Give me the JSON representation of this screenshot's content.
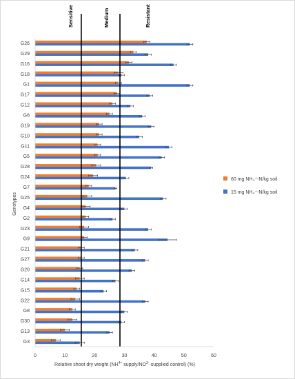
{
  "chart_data": {
    "type": "bar",
    "orientation": "horizontal",
    "categories": [
      "G26",
      "G29",
      "G16",
      "G18",
      "G1",
      "G17",
      "G12",
      "G6",
      "G19",
      "G10",
      "G11",
      "G5",
      "G28",
      "G24",
      "G7",
      "G25",
      "G4",
      "G2",
      "G23",
      "G9",
      "G21",
      "G27",
      "G20",
      "G14",
      "G15",
      "G22",
      "G8",
      "G30",
      "G13",
      "G3"
    ],
    "series": [
      {
        "name": "60 mg NH₄⁺-N/kg soil",
        "color": "#ED7D31",
        "values": [
          37.5,
          33.0,
          31.5,
          28.0,
          28.0,
          27.5,
          26.0,
          25.0,
          21.5,
          21.5,
          21.0,
          21.0,
          20.5,
          19.5,
          18.0,
          17.5,
          17.0,
          17.0,
          16.5,
          16.5,
          15.5,
          15.5,
          15.0,
          15.0,
          14.0,
          13.5,
          12.5,
          12.5,
          10.0,
          7.0
        ],
        "errors": [
          1.0,
          1.0,
          1.0,
          1.5,
          1.0,
          1.0,
          1.0,
          1.0,
          1.0,
          1.0,
          1.0,
          1.0,
          1.5,
          1.5,
          1.0,
          1.5,
          1.5,
          1.0,
          1.5,
          1.0,
          1.0,
          1.0,
          1.0,
          1.5,
          1.0,
          1.5,
          1.0,
          1.5,
          1.5,
          1.5
        ]
      },
      {
        "name": "15 mg NH₄⁺-N/kg soil",
        "color": "#4472C4",
        "values": [
          52.0,
          38.0,
          46.5,
          29.0,
          52.0,
          38.5,
          32.0,
          36.0,
          39.0,
          35.0,
          45.0,
          42.5,
          39.0,
          30.5,
          27.0,
          43.0,
          30.0,
          26.0,
          38.0,
          44.5,
          33.5,
          37.0,
          32.5,
          27.0,
          23.0,
          37.0,
          30.0,
          29.0,
          25.0,
          15.0
        ],
        "errors": [
          1.0,
          1.0,
          1.0,
          1.0,
          1.0,
          1.0,
          1.0,
          1.0,
          1.0,
          1.0,
          1.0,
          1.0,
          0.5,
          1.0,
          0.5,
          1.0,
          1.0,
          1.0,
          1.0,
          3.0,
          1.0,
          1.0,
          1.0,
          1.0,
          1.0,
          1.0,
          1.0,
          1.0,
          1.0,
          1.5
        ]
      }
    ],
    "xlabel": "Relative shoot dry weight (NH4+ supply/NO3- supplied control) (%)",
    "ylabel": "Genotypes",
    "xlim": [
      0,
      60
    ],
    "xticks": [
      "0",
      "10",
      "20",
      "30",
      "40",
      "50",
      "60"
    ],
    "thresholds": [
      {
        "label": "Sensitive",
        "value": 15.5
      },
      {
        "label": "Medium",
        "value": 28.5
      }
    ],
    "zone_labels": [
      "Sensitive",
      "Medium",
      "Resistant"
    ],
    "grid": false,
    "legend_position": "right"
  }
}
